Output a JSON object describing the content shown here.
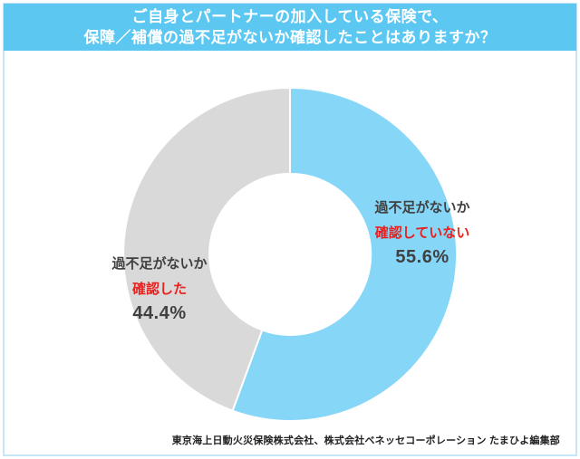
{
  "header": {
    "line1": "ご自身とパートナーの加入している保険で、",
    "line2": "保障／補償の過不足がないか確認したことはありますか？"
  },
  "chart_data": {
    "type": "pie",
    "subtype": "donut",
    "title": "ご自身とパートナーの加入している保険で、保障／補償の過不足がないか確認したことはありますか？",
    "start_angle_deg": 0,
    "direction": "clockwise",
    "inner_radius_ratio": 0.484,
    "legend": "none",
    "slices": [
      {
        "name": "slice-not-checked",
        "label_line1": "過不足がないか",
        "label_line2": "確認していない",
        "value": 55.6,
        "display_value": "55.6%",
        "color": "#86d6f8"
      },
      {
        "name": "slice-checked",
        "label_line1": "過不足がないか",
        "label_line2": "確認した",
        "value": 44.4,
        "display_value": "44.4%",
        "color": "#d9d9d9"
      }
    ]
  },
  "footer": {
    "source": "東京海上日動火災保険株式会社、株式会社ベネッセコーポレーション たまひよ編集部"
  },
  "colors": {
    "header_bg": "#5cc8f2",
    "header_text": "#ffffff",
    "emphasis_red": "#e7211f",
    "label_dark": "#404040",
    "page_border": "#c6e6f8",
    "slice_blue": "#86d6f8",
    "slice_gray": "#d9d9d9",
    "divider_white": "#ffffff"
  }
}
